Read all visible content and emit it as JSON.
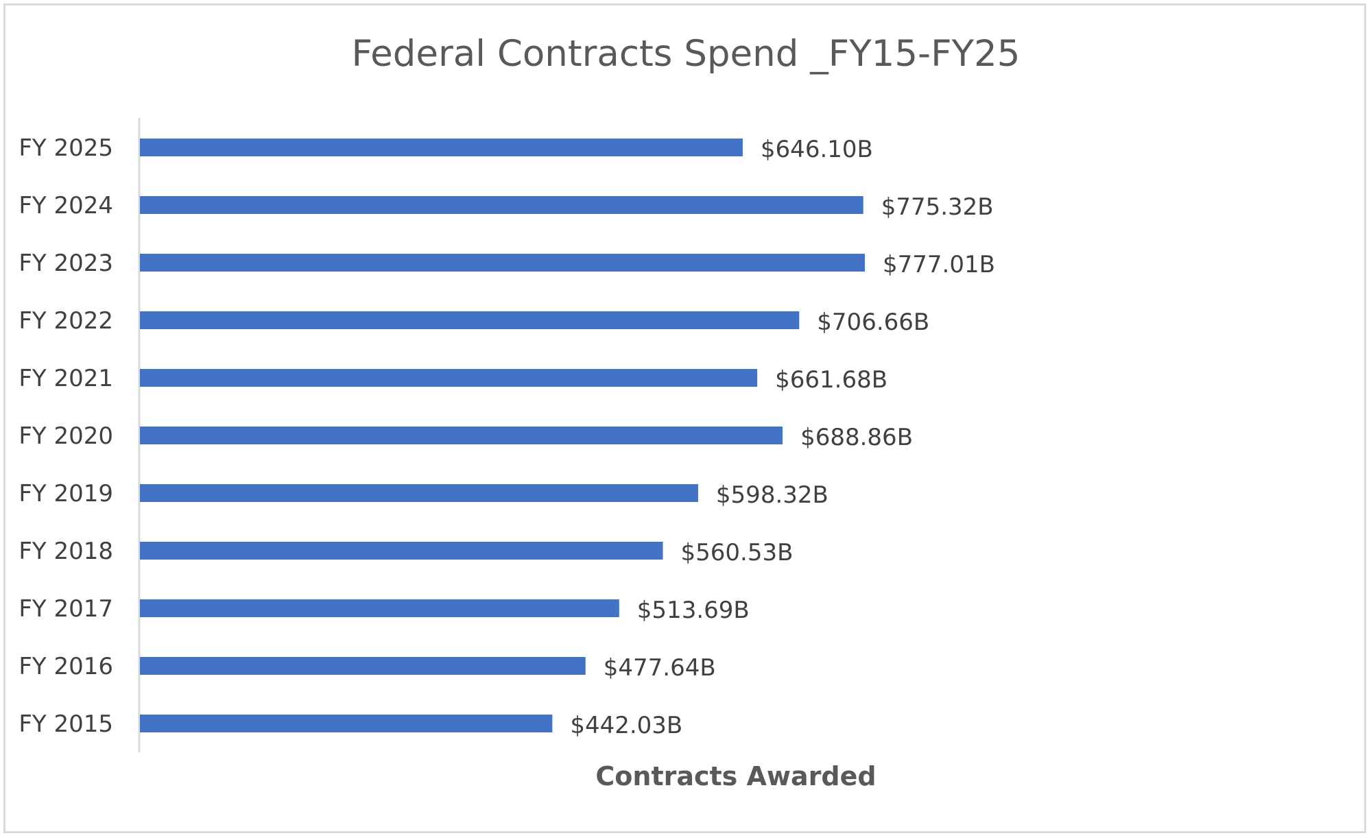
{
  "chart_data": {
    "type": "bar",
    "orientation": "horizontal",
    "title": "Federal Contracts Spend _FY15-FY25",
    "xlabel": "Contracts Awarded",
    "ylabel": "",
    "categories": [
      "FY 2025",
      "FY 2024",
      "FY 2023",
      "FY 2022",
      "FY 2021",
      "FY 2020",
      "FY 2019",
      "FY 2018",
      "FY 2017",
      "FY 2016",
      "FY 2015"
    ],
    "values": [
      646.1,
      775.32,
      777.01,
      706.66,
      661.68,
      688.86,
      598.32,
      560.53,
      513.69,
      477.64,
      442.03
    ],
    "data_labels": [
      "$646.10B",
      "$775.32B",
      "$777.01B",
      "$706.66B",
      "$661.68B",
      "$688.86B",
      "$598.32B",
      "$560.53B",
      "$513.69B",
      "$477.64B",
      "$442.03B"
    ],
    "unit": "billion USD",
    "xlim": [
      0,
      1110
    ],
    "grid": false,
    "legend": "none",
    "colors": {
      "bar": "#4472c4",
      "axis_line": "#d9d9d9",
      "title": "#595959",
      "label": "#404040"
    }
  }
}
